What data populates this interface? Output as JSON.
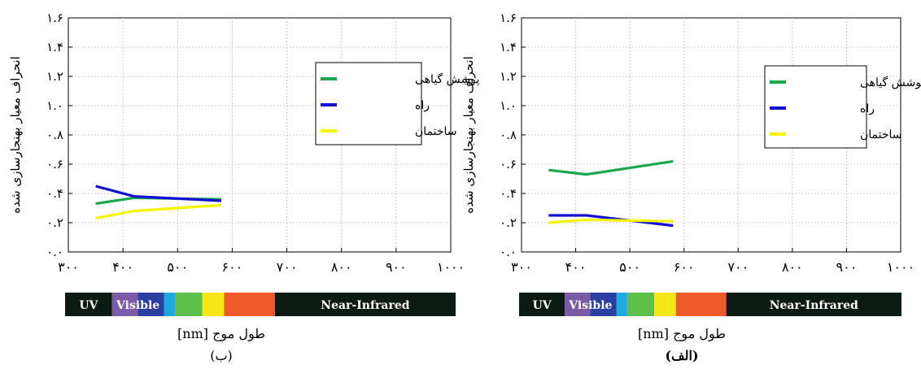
{
  "chart_data": [
    {
      "type": "line",
      "panel": "left",
      "caption": "(ب)",
      "xlabel": "طول موج [nm]",
      "ylabel": "انحراف معیار بهنجارسازی شده",
      "xlim": [
        300,
        1000
      ],
      "ylim": [
        0,
        1.6
      ],
      "x_ticks": [
        300,
        400,
        500,
        600,
        700,
        800,
        900,
        1000
      ],
      "x_tick_labels": [
        "۳۰۰",
        "۴۰۰",
        "۵۰۰",
        "۶۰۰",
        "۷۰۰",
        "۸۰۰",
        "۹۰۰",
        "۱۰۰۰"
      ],
      "y_ticks": [
        0,
        0.2,
        0.4,
        0.6,
        0.8,
        1.0,
        1.2,
        1.4,
        1.6
      ],
      "y_tick_labels": [
        "۰.۰",
        "۰.۲",
        "۰.۴",
        "۰.۶",
        "۰.۸",
        "۱.۰",
        "۱.۲",
        "۱.۴",
        "۱.۶"
      ],
      "grid": true,
      "legend_position": "top-right",
      "series": [
        {
          "name": "پوشش گیاهی",
          "color": "#1aa84c",
          "x": [
            350,
            420,
            580
          ],
          "y": [
            0.33,
            0.37,
            0.36
          ]
        },
        {
          "name": "راه",
          "color": "#1010d0",
          "x": [
            350,
            420,
            580
          ],
          "y": [
            0.45,
            0.38,
            0.35
          ]
        },
        {
          "name": "ساختمان",
          "color": "#f5f500",
          "x": [
            350,
            420,
            580
          ],
          "y": [
            0.23,
            0.28,
            0.32
          ]
        }
      ]
    },
    {
      "type": "line",
      "panel": "right",
      "caption": "(الف)",
      "xlabel": "طول موج [nm]",
      "ylabel": "انحراف معیار بهنجارسازی شده",
      "xlim": [
        300,
        1000
      ],
      "ylim": [
        0,
        1.6
      ],
      "x_ticks": [
        300,
        400,
        500,
        600,
        700,
        800,
        900,
        1000
      ],
      "x_tick_labels": [
        "۳۰۰",
        "۴۰۰",
        "۵۰۰",
        "۶۰۰",
        "۷۰۰",
        "۸۰۰",
        "۹۰۰",
        "۱۰۰۰"
      ],
      "y_ticks": [
        0,
        0.2,
        0.4,
        0.6,
        0.8,
        1.0,
        1.2,
        1.4,
        1.6
      ],
      "y_tick_labels": [
        "۰.۰",
        "۰.۲",
        "۰.۴",
        "۰.۶",
        "۰.۸",
        "۱.۰",
        "۱.۲",
        "۱.۴",
        "۱.۶"
      ],
      "grid": true,
      "legend_position": "top-right",
      "series": [
        {
          "name": "پوشش گیاهی",
          "color": "#1aa84c",
          "x": [
            350,
            420,
            580
          ],
          "y": [
            0.56,
            0.53,
            0.62
          ]
        },
        {
          "name": "راه",
          "color": "#1010d0",
          "x": [
            350,
            420,
            580
          ],
          "y": [
            0.25,
            0.25,
            0.18
          ]
        },
        {
          "name": "ساختمان",
          "color": "#f5f500",
          "x": [
            350,
            420,
            580
          ],
          "y": [
            0.2,
            0.22,
            0.21
          ]
        }
      ]
    }
  ],
  "spectrum_bar": {
    "uv_label": "UV",
    "visible_label": "Visible",
    "nir_label": "Near-Infrared",
    "colors": {
      "dark": "#0b1a12",
      "violet": "#7b5aa6",
      "indigo": "#2a3fa0",
      "cyan": "#1ea8e0",
      "green": "#5cc04a",
      "yellow": "#f5e61a",
      "orange": "#f05a28"
    }
  }
}
